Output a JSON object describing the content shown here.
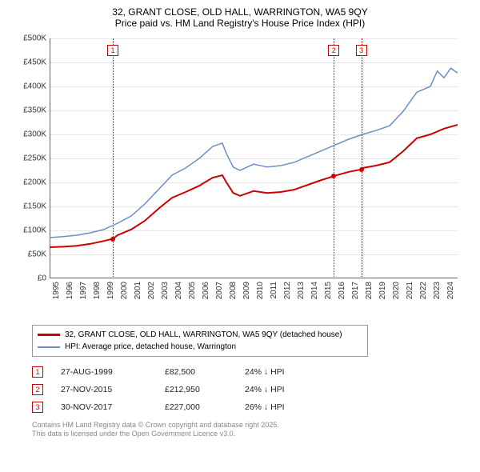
{
  "title": {
    "line1": "32, GRANT CLOSE, OLD HALL, WARRINGTON, WA5 9QY",
    "line2": "Price paid vs. HM Land Registry's House Price Index (HPI)",
    "fontsize": 12
  },
  "chart": {
    "type": "line",
    "background_color": "#ffffff",
    "grid_color": "#d0d0d0",
    "axis_color": "#666666",
    "xlim": [
      1995,
      2025
    ],
    "ylim": [
      0,
      500000
    ],
    "ytick_step": 50000,
    "yticks": [
      "£0",
      "£50K",
      "£100K",
      "£150K",
      "£200K",
      "£250K",
      "£300K",
      "£350K",
      "£400K",
      "£450K",
      "£500K"
    ],
    "xticks": [
      "1995",
      "1996",
      "1997",
      "1998",
      "1999",
      "2000",
      "2001",
      "2002",
      "2003",
      "2004",
      "2005",
      "2006",
      "2007",
      "2008",
      "2009",
      "2010",
      "2011",
      "2012",
      "2013",
      "2014",
      "2015",
      "2016",
      "2017",
      "2018",
      "2019",
      "2020",
      "2021",
      "2022",
      "2023",
      "2024"
    ],
    "series": [
      {
        "name": "price_paid",
        "label": "32, GRANT CLOSE, OLD HALL, WARRINGTON, WA5 9QY (detached house)",
        "color": "#cc0000",
        "line_width": 2,
        "points": [
          [
            1995,
            65000
          ],
          [
            1996,
            66000
          ],
          [
            1997,
            68000
          ],
          [
            1998,
            72000
          ],
          [
            1999,
            78000
          ],
          [
            1999.65,
            82500
          ],
          [
            2000,
            90000
          ],
          [
            2001,
            102000
          ],
          [
            2002,
            120000
          ],
          [
            2003,
            145000
          ],
          [
            2004,
            168000
          ],
          [
            2005,
            180000
          ],
          [
            2006,
            193000
          ],
          [
            2007,
            210000
          ],
          [
            2007.7,
            215000
          ],
          [
            2008,
            200000
          ],
          [
            2008.5,
            178000
          ],
          [
            2009,
            172000
          ],
          [
            2010,
            182000
          ],
          [
            2011,
            178000
          ],
          [
            2012,
            180000
          ],
          [
            2013,
            185000
          ],
          [
            2014,
            195000
          ],
          [
            2015,
            205000
          ],
          [
            2015.9,
            212950
          ],
          [
            2016,
            214000
          ],
          [
            2017,
            222000
          ],
          [
            2017.92,
            227000
          ],
          [
            2018,
            230000
          ],
          [
            2019,
            235000
          ],
          [
            2020,
            242000
          ],
          [
            2021,
            265000
          ],
          [
            2022,
            292000
          ],
          [
            2023,
            300000
          ],
          [
            2024,
            312000
          ],
          [
            2025,
            320000
          ]
        ]
      },
      {
        "name": "hpi",
        "label": "HPI: Average price, detached house, Warrington",
        "color": "#6a8fc5",
        "line_width": 1.5,
        "points": [
          [
            1995,
            85000
          ],
          [
            1996,
            87000
          ],
          [
            1997,
            90000
          ],
          [
            1998,
            95000
          ],
          [
            1999,
            102000
          ],
          [
            2000,
            115000
          ],
          [
            2001,
            130000
          ],
          [
            2002,
            155000
          ],
          [
            2003,
            185000
          ],
          [
            2004,
            215000
          ],
          [
            2005,
            230000
          ],
          [
            2006,
            250000
          ],
          [
            2007,
            275000
          ],
          [
            2007.7,
            282000
          ],
          [
            2008,
            260000
          ],
          [
            2008.5,
            232000
          ],
          [
            2009,
            225000
          ],
          [
            2010,
            238000
          ],
          [
            2011,
            232000
          ],
          [
            2012,
            235000
          ],
          [
            2013,
            242000
          ],
          [
            2014,
            254000
          ],
          [
            2015,
            266000
          ],
          [
            2016,
            278000
          ],
          [
            2017,
            290000
          ],
          [
            2018,
            300000
          ],
          [
            2019,
            308000
          ],
          [
            2020,
            318000
          ],
          [
            2021,
            348000
          ],
          [
            2022,
            388000
          ],
          [
            2023,
            400000
          ],
          [
            2023.5,
            432000
          ],
          [
            2024,
            418000
          ],
          [
            2024.5,
            438000
          ],
          [
            2025,
            428000
          ]
        ]
      }
    ],
    "sale_points": [
      {
        "x": 1999.65,
        "y": 82500,
        "color": "#cc0000"
      },
      {
        "x": 2015.9,
        "y": 212950,
        "color": "#cc0000"
      },
      {
        "x": 2017.92,
        "y": 227000,
        "color": "#cc0000"
      }
    ],
    "events": [
      {
        "n": "1",
        "x": 1999.65,
        "color": "#cc0000"
      },
      {
        "n": "2",
        "x": 2015.9,
        "color": "#cc0000"
      },
      {
        "n": "3",
        "x": 2017.92,
        "color": "#cc0000"
      }
    ]
  },
  "legend": {
    "border_color": "#999999",
    "items": [
      {
        "color": "#cc0000",
        "thick": 3,
        "label": "32, GRANT CLOSE, OLD HALL, WARRINGTON, WA5 9QY (detached house)"
      },
      {
        "color": "#6a8fc5",
        "thick": 2,
        "label": "HPI: Average price, detached house, Warrington"
      }
    ]
  },
  "events_table": {
    "rows": [
      {
        "n": "1",
        "color": "#cc0000",
        "date": "27-AUG-1999",
        "price": "£82,500",
        "delta": "24% ↓ HPI"
      },
      {
        "n": "2",
        "color": "#cc0000",
        "date": "27-NOV-2015",
        "price": "£212,950",
        "delta": "24% ↓ HPI"
      },
      {
        "n": "3",
        "color": "#cc0000",
        "date": "30-NOV-2017",
        "price": "£227,000",
        "delta": "26% ↓ HPI"
      }
    ]
  },
  "footer": {
    "line1": "Contains HM Land Registry data © Crown copyright and database right 2025.",
    "line2": "This data is licensed under the Open Government Licence v3.0."
  }
}
